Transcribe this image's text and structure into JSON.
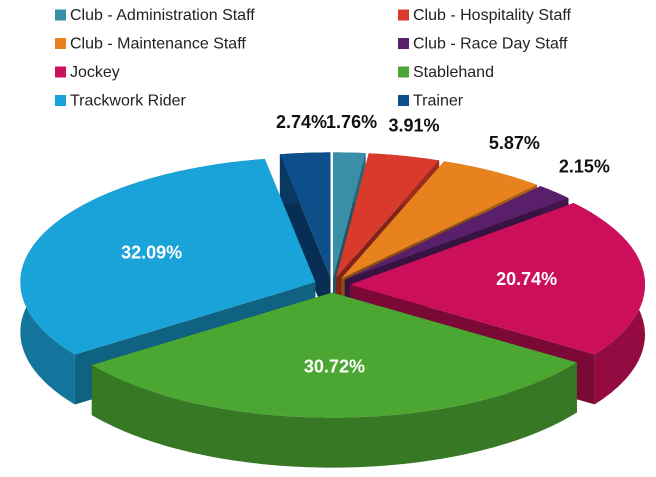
{
  "chart_data": {
    "type": "pie3d",
    "categories": [
      "Club - Administration Staff",
      "Club - Hospitality Staff",
      "Club - Maintenance Staff",
      "Club - Race Day Staff",
      "Jockey",
      "Stablehand",
      "Trackwork Rider",
      "Trainer"
    ],
    "values": [
      1.76,
      3.91,
      5.87,
      2.15,
      20.74,
      30.72,
      32.09,
      2.74
    ],
    "value_labels": [
      "1.76%",
      "3.91%",
      "5.87%",
      "2.15%",
      "20.74%",
      "30.72%",
      "32.09%",
      "2.74%"
    ],
    "colors": [
      "#3a8fa8",
      "#d93a2b",
      "#e8821e",
      "#5a1f6b",
      "#cc0f5a",
      "#4ca632",
      "#1aa3d8",
      "#0d4f8a"
    ],
    "legend": "top"
  }
}
